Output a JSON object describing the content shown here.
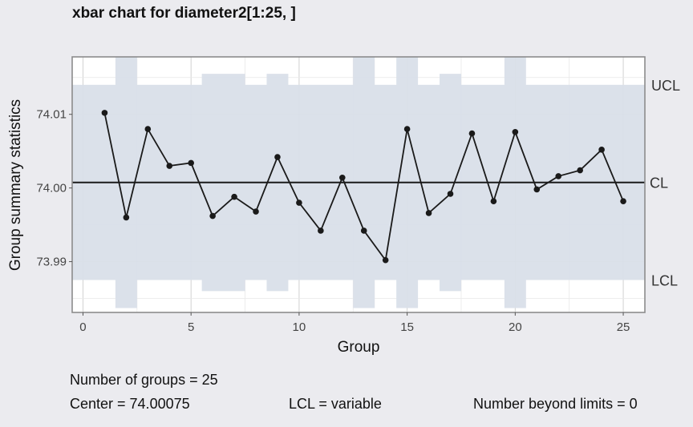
{
  "chart_data": {
    "type": "line",
    "title": "xbar chart for diameter2[1:25, ]",
    "xlabel": "Group",
    "ylabel": "Group summary statistics",
    "xlim": [
      -0.5,
      26
    ],
    "ylim": [
      73.9831,
      74.0178
    ],
    "x_ticks": [
      0,
      5,
      10,
      15,
      20,
      25
    ],
    "y_ticks": [
      73.99,
      74.0,
      74.01
    ],
    "y_tick_labels": [
      "73.99",
      "74.00",
      "74.01"
    ],
    "x": [
      1,
      2,
      3,
      4,
      5,
      6,
      7,
      8,
      9,
      10,
      11,
      12,
      13,
      14,
      15,
      16,
      17,
      18,
      19,
      20,
      21,
      22,
      23,
      24,
      25
    ],
    "values": [
      74.0102,
      73.996,
      74.008,
      74.003,
      74.0034,
      73.9962,
      73.9988,
      73.9968,
      74.0042,
      73.998,
      73.9942,
      74.0014,
      73.9942,
      73.9902,
      74.008,
      73.9966,
      73.9992,
      74.0074,
      73.9982,
      74.0076,
      73.9998,
      74.0016,
      74.0024,
      74.0052,
      73.9982
    ],
    "center": 74.00075,
    "ucl": [
      74.014,
      74.0178,
      74.014,
      74.014,
      74.014,
      74.0155,
      74.0155,
      74.014,
      74.0155,
      74.014,
      74.014,
      74.014,
      74.0178,
      74.014,
      74.0178,
      74.014,
      74.0155,
      74.014,
      74.014,
      74.0178,
      74.014,
      74.014,
      74.014,
      74.014,
      74.014
    ],
    "lcl": [
      73.9875,
      73.9837,
      73.9875,
      73.9875,
      73.9875,
      73.986,
      73.986,
      73.9875,
      73.986,
      73.9875,
      73.9875,
      73.9875,
      73.9837,
      73.9875,
      73.9837,
      73.9875,
      73.986,
      73.9875,
      73.9875,
      73.9837,
      73.9875,
      73.9875,
      73.9875,
      73.9875,
      73.9875
    ],
    "limit_labels": {
      "ucl": "UCL",
      "cl": "CL",
      "lcl": "LCL"
    },
    "grid": true,
    "colors": {
      "band": "#d9dfe9",
      "line": "#1a1a1a",
      "panel": "#ffffff",
      "background": "#ebebef"
    }
  },
  "stats": {
    "groups": "Number of groups = 25",
    "center": "Center = 74.00075",
    "lcl": "LCL = variable",
    "beyond": "Number beyond limits = 0"
  }
}
